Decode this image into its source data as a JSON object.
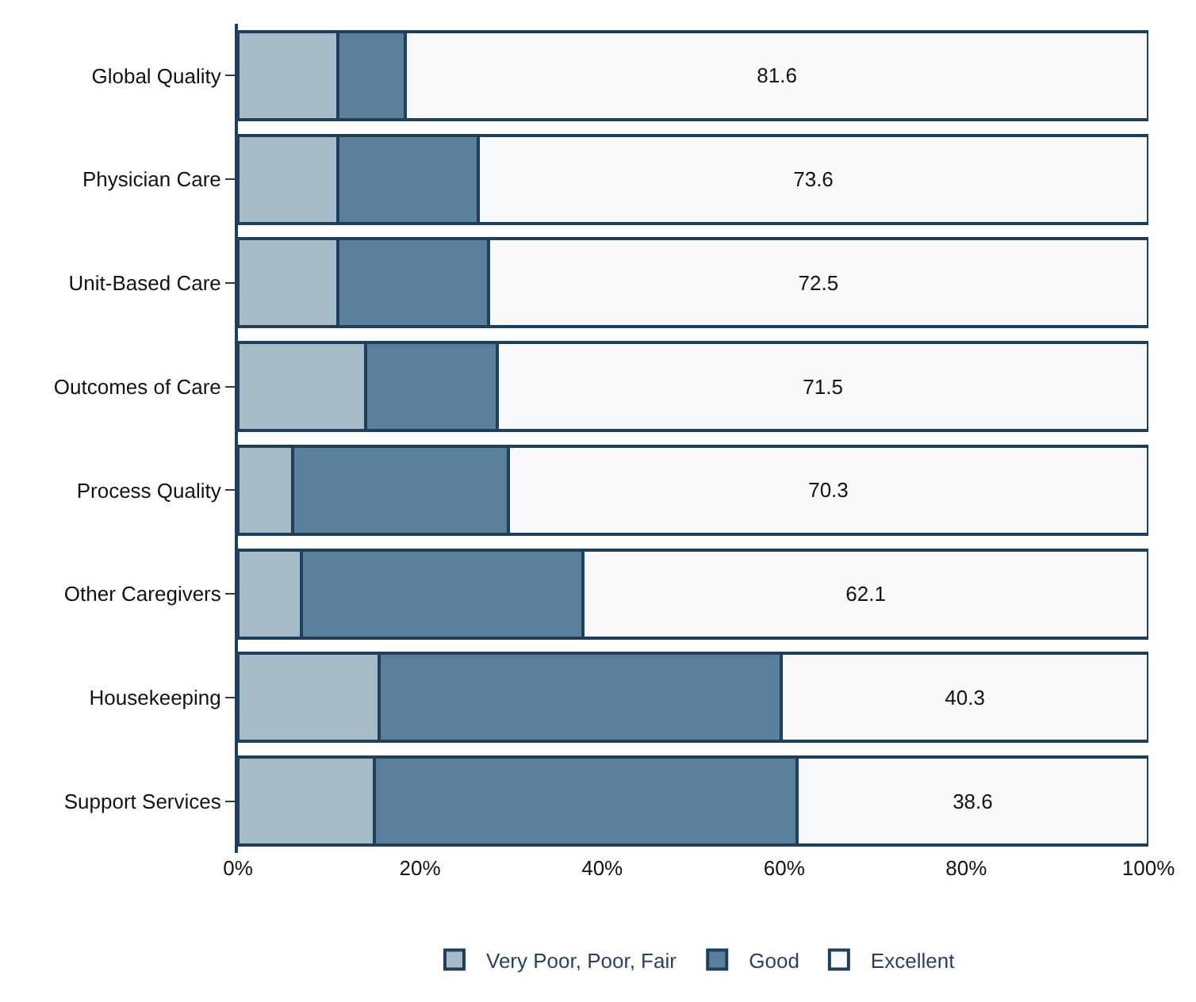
{
  "chart_data": {
    "type": "bar",
    "orientation": "horizontal",
    "stacked": true,
    "categories": [
      "Global Quality",
      "Physician Care",
      "Unit-Based Care",
      "Outcomes of Care",
      "Process Quality",
      "Other Caregivers",
      "Housekeeping",
      "Support Services"
    ],
    "series": [
      {
        "name": "Very Poor, Poor, Fair",
        "color": "#a7bcc9",
        "values": [
          11,
          11,
          11,
          14,
          6,
          7,
          15.5,
          15
        ]
      },
      {
        "name": "Good",
        "color": "#5a7f9a",
        "values": [
          7.4,
          15.4,
          16.5,
          14.5,
          23.7,
          30.9,
          44.2,
          46.4
        ]
      },
      {
        "name": "Excellent",
        "color": "#f8f9fb",
        "values": [
          81.6,
          73.6,
          72.5,
          71.5,
          70.3,
          62.1,
          40.3,
          38.6
        ],
        "value_labels": [
          "81.6",
          "73.6",
          "72.5",
          "71.5",
          "70.3",
          "62.1",
          "40.3",
          "38.6"
        ]
      }
    ],
    "xlim": [
      0,
      100
    ],
    "xticks": [
      {
        "value": 0,
        "label": "0%"
      },
      {
        "value": 20,
        "label": "20%"
      },
      {
        "value": 40,
        "label": "40%"
      },
      {
        "value": 60,
        "label": "60%"
      },
      {
        "value": 80,
        "label": "80%"
      },
      {
        "value": 100,
        "label": "100%"
      }
    ],
    "legend": "bottom"
  }
}
